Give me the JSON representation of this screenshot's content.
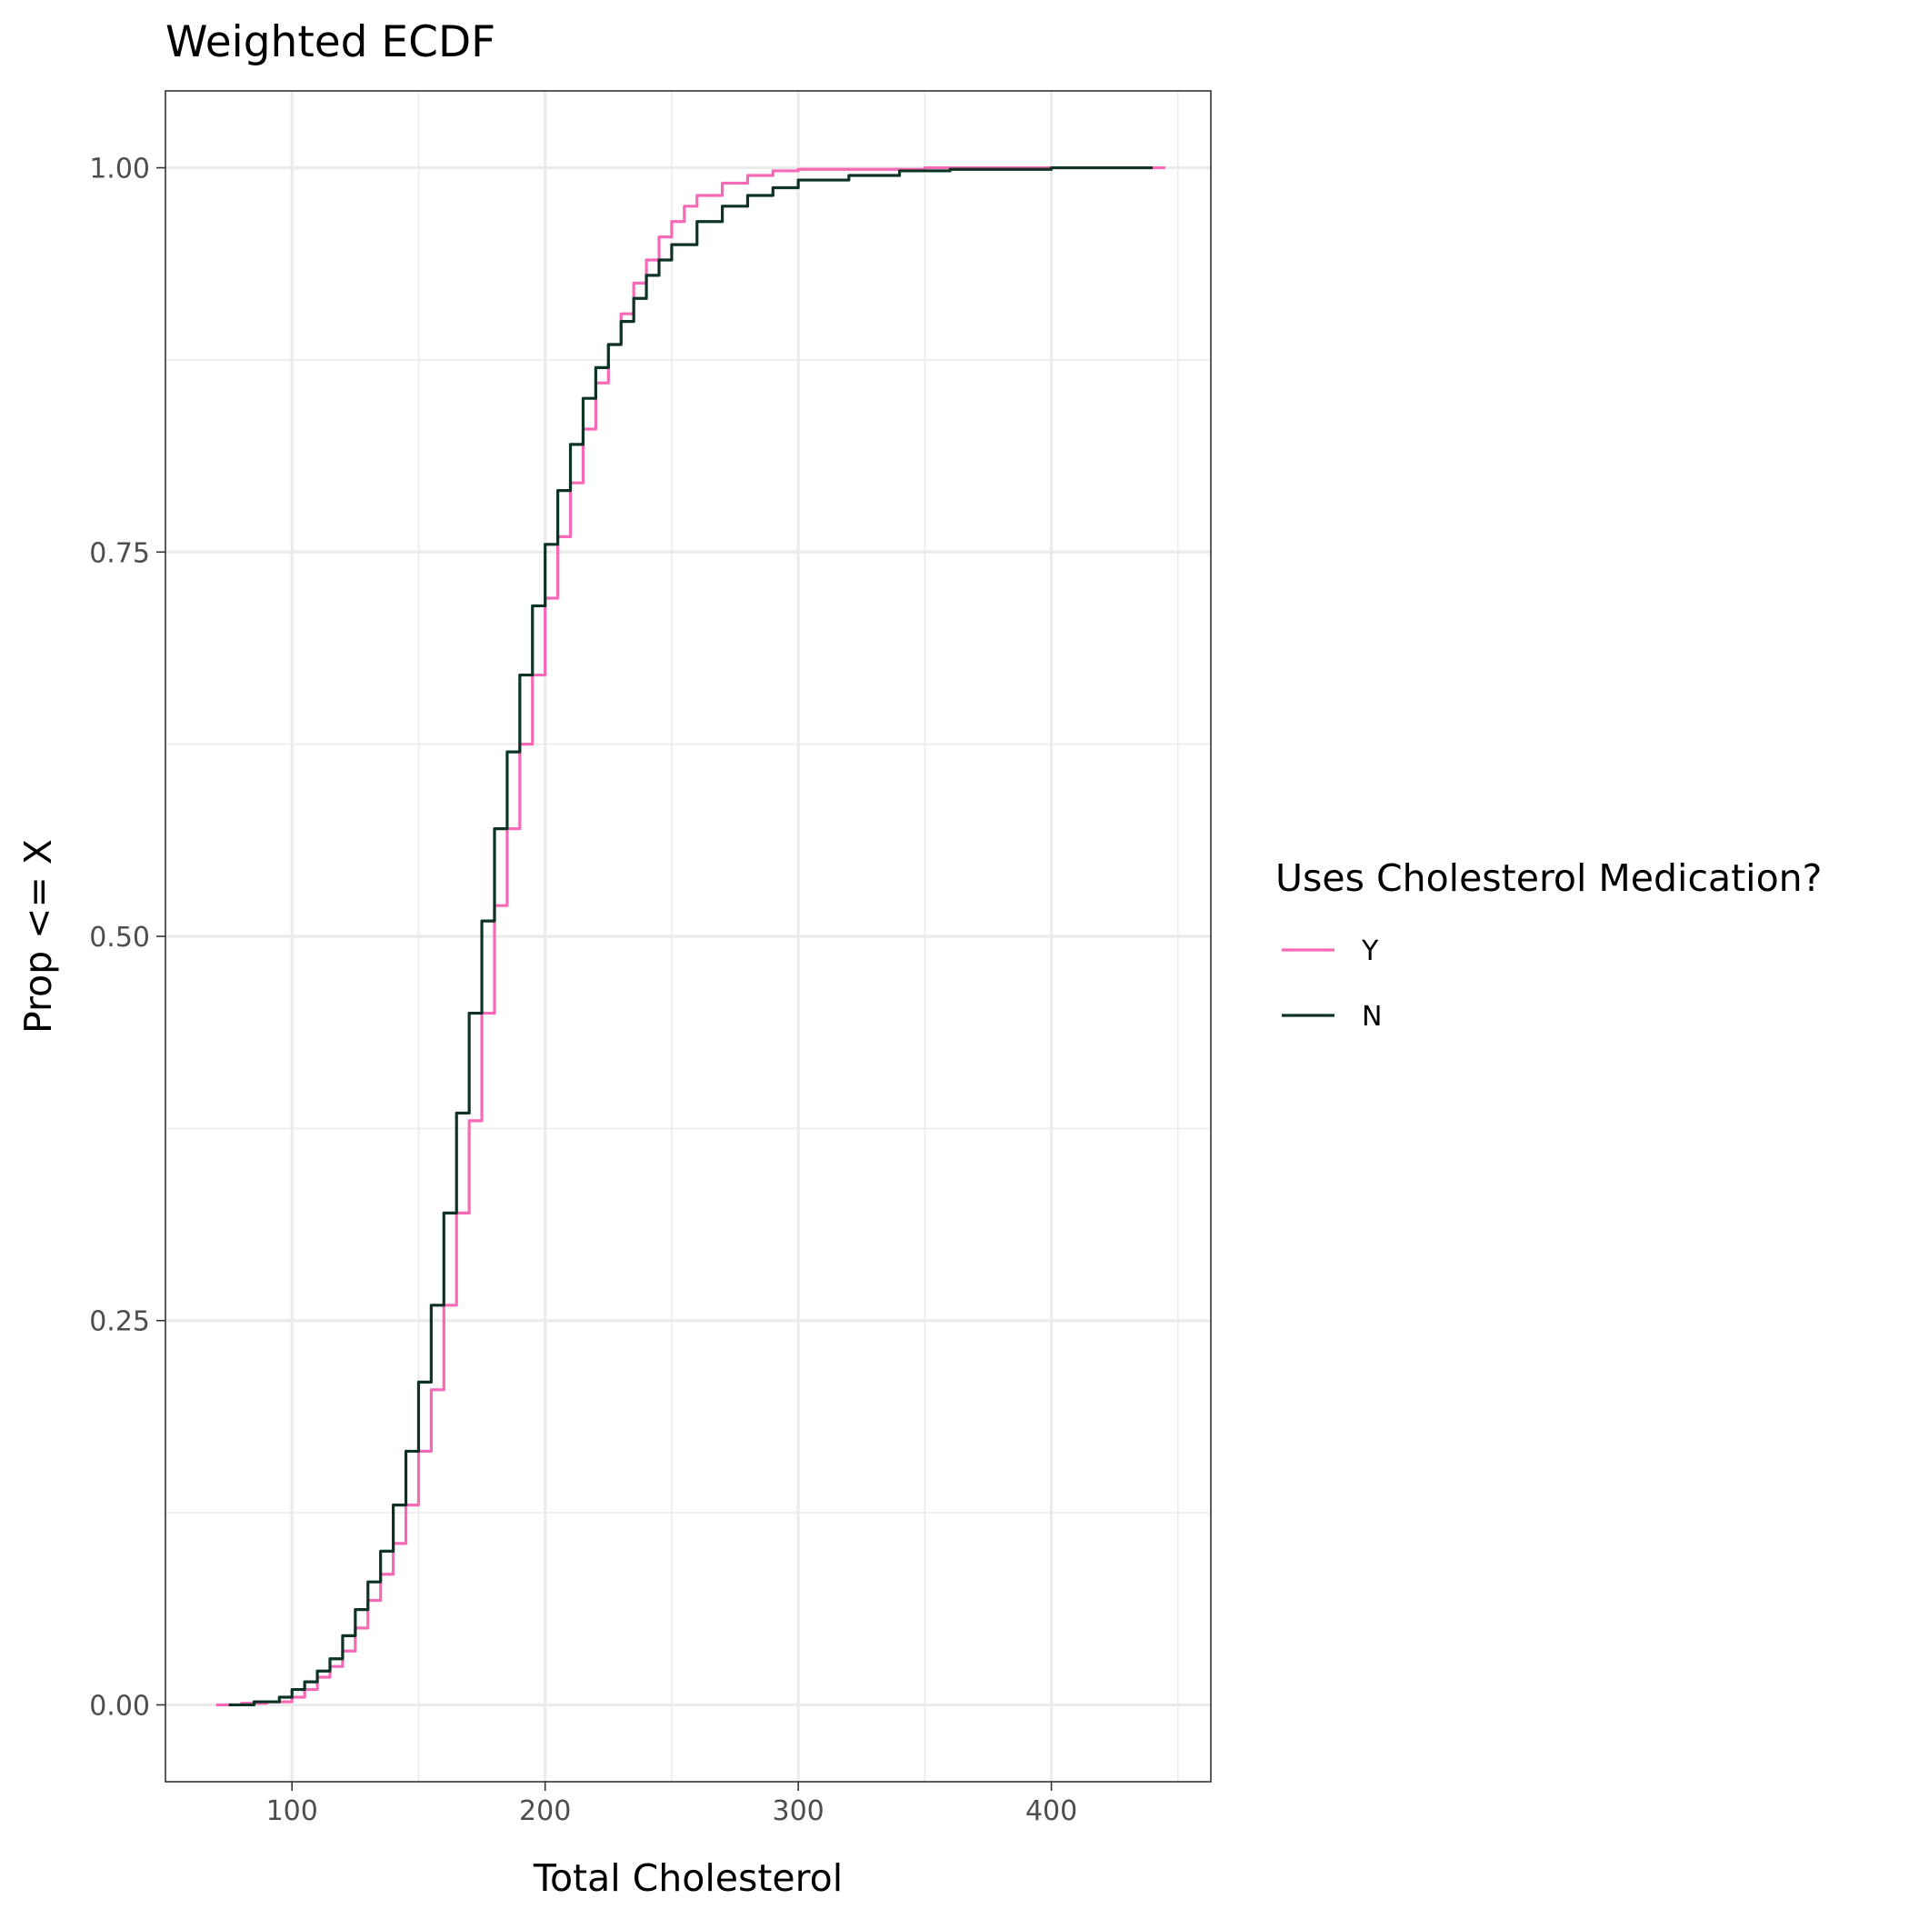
{
  "chart_data": {
    "type": "line",
    "title": "Weighted ECDF",
    "xlabel": "Total Cholesterol",
    "ylabel": "Prop <= X",
    "xlim": [
      50,
      463
    ],
    "ylim": [
      -0.05,
      1.05
    ],
    "x_ticks": [
      100,
      200,
      300,
      400
    ],
    "x_tick_labels": [
      "100",
      "200",
      "300",
      "400"
    ],
    "y_ticks": [
      0,
      0.25,
      0.5,
      0.75,
      1
    ],
    "y_tick_labels": [
      "0.00",
      "0.25",
      "0.50",
      "0.75",
      "1.00"
    ],
    "grid": true,
    "legend": {
      "title": "Uses Cholesterol Medication?",
      "position": "right"
    },
    "series": [
      {
        "name": "Y",
        "color": "#f768b7",
        "points": [
          [
            70,
            0
          ],
          [
            80,
            0.001
          ],
          [
            90,
            0.002
          ],
          [
            100,
            0.005
          ],
          [
            105,
            0.01
          ],
          [
            110,
            0.018
          ],
          [
            115,
            0.025
          ],
          [
            120,
            0.035
          ],
          [
            125,
            0.05
          ],
          [
            130,
            0.068
          ],
          [
            135,
            0.085
          ],
          [
            140,
            0.105
          ],
          [
            145,
            0.13
          ],
          [
            150,
            0.165
          ],
          [
            155,
            0.205
          ],
          [
            160,
            0.26
          ],
          [
            165,
            0.32
          ],
          [
            170,
            0.38
          ],
          [
            175,
            0.45
          ],
          [
            180,
            0.52
          ],
          [
            185,
            0.57
          ],
          [
            190,
            0.625
          ],
          [
            195,
            0.67
          ],
          [
            200,
            0.72
          ],
          [
            205,
            0.76
          ],
          [
            210,
            0.795
          ],
          [
            215,
            0.83
          ],
          [
            220,
            0.86
          ],
          [
            225,
            0.885
          ],
          [
            230,
            0.905
          ],
          [
            235,
            0.925
          ],
          [
            240,
            0.94
          ],
          [
            245,
            0.955
          ],
          [
            250,
            0.965
          ],
          [
            255,
            0.975
          ],
          [
            260,
            0.982
          ],
          [
            270,
            0.99
          ],
          [
            280,
            0.995
          ],
          [
            290,
            0.998
          ],
          [
            300,
            0.999
          ],
          [
            350,
            1.0
          ],
          [
            445,
            1.0
          ]
        ]
      },
      {
        "name": "N",
        "color": "#0c3323",
        "points": [
          [
            75,
            0
          ],
          [
            85,
            0.002
          ],
          [
            95,
            0.005
          ],
          [
            100,
            0.01
          ],
          [
            105,
            0.015
          ],
          [
            110,
            0.022
          ],
          [
            115,
            0.03
          ],
          [
            120,
            0.045
          ],
          [
            125,
            0.062
          ],
          [
            130,
            0.08
          ],
          [
            135,
            0.1
          ],
          [
            140,
            0.13
          ],
          [
            145,
            0.165
          ],
          [
            150,
            0.21
          ],
          [
            155,
            0.26
          ],
          [
            160,
            0.32
          ],
          [
            165,
            0.385
          ],
          [
            170,
            0.45
          ],
          [
            175,
            0.51
          ],
          [
            180,
            0.57
          ],
          [
            185,
            0.62
          ],
          [
            190,
            0.67
          ],
          [
            195,
            0.715
          ],
          [
            200,
            0.755
          ],
          [
            205,
            0.79
          ],
          [
            210,
            0.82
          ],
          [
            215,
            0.85
          ],
          [
            220,
            0.87
          ],
          [
            225,
            0.885
          ],
          [
            230,
            0.9
          ],
          [
            235,
            0.915
          ],
          [
            240,
            0.93
          ],
          [
            245,
            0.94
          ],
          [
            250,
            0.95
          ],
          [
            260,
            0.965
          ],
          [
            270,
            0.975
          ],
          [
            280,
            0.982
          ],
          [
            290,
            0.987
          ],
          [
            300,
            0.992
          ],
          [
            320,
            0.995
          ],
          [
            340,
            0.998
          ],
          [
            360,
            0.999
          ],
          [
            400,
            1.0
          ],
          [
            440,
            1.0
          ]
        ]
      }
    ]
  }
}
